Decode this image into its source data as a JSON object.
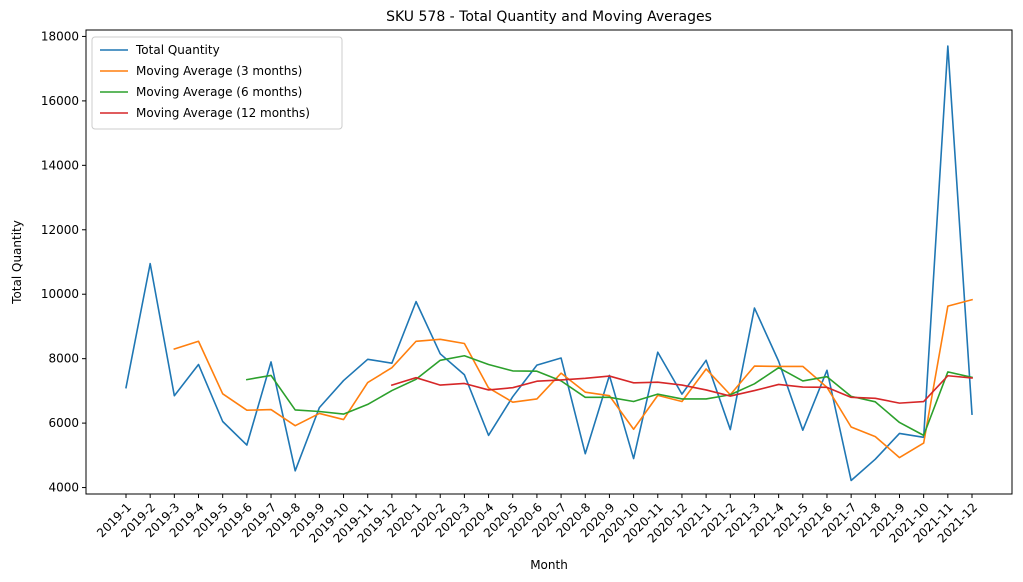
{
  "chart_data": {
    "type": "line",
    "title": "SKU 578 - Total Quantity and Moving Averages",
    "xlabel": "Month",
    "ylabel": "Total Quantity",
    "ylim": [
      3800,
      18200
    ],
    "yticks": [
      4000,
      6000,
      8000,
      10000,
      12000,
      14000,
      16000,
      18000
    ],
    "grid": false,
    "legend_position": "top-left",
    "categories": [
      "2019-1",
      "2019-2",
      "2019-3",
      "2019-4",
      "2019-5",
      "2019-6",
      "2019-7",
      "2019-8",
      "2019-9",
      "2019-10",
      "2019-11",
      "2019-12",
      "2020-1",
      "2020-2",
      "2020-3",
      "2020-4",
      "2020-5",
      "2020-6",
      "2020-7",
      "2020-8",
      "2020-9",
      "2020-10",
      "2020-11",
      "2020-12",
      "2021-1",
      "2021-2",
      "2021-3",
      "2021-4",
      "2021-5",
      "2021-6",
      "2021-7",
      "2021-8",
      "2021-9",
      "2021-10",
      "2021-11",
      "2021-12"
    ],
    "series": [
      {
        "name": "Total Quantity",
        "color": "#1f77b4",
        "values": [
          7100,
          10950,
          6850,
          7820,
          6050,
          5320,
          7900,
          4520,
          6480,
          7320,
          7980,
          7860,
          9770,
          8150,
          7500,
          5620,
          6820,
          7800,
          8020,
          5050,
          7480,
          4900,
          8200,
          6900,
          7950,
          5800,
          9570,
          7920,
          5780,
          7640,
          4220,
          4880,
          5680,
          5560,
          17700,
          6280
        ]
      },
      {
        "name": "Moving Average (3 months)",
        "color": "#ff7f0e",
        "values": [
          null,
          null,
          8300,
          8540,
          6910,
          6400,
          6420,
          5920,
          6300,
          6110,
          7260,
          7720,
          8540,
          8600,
          8470,
          7090,
          6650,
          6750,
          7550,
          6960,
          6850,
          5810,
          6860,
          6670,
          7680,
          6880,
          7770,
          7760,
          7760,
          7110,
          5880,
          5580,
          4930,
          5380,
          9630,
          9830
        ]
      },
      {
        "name": "Moving Average (6 months)",
        "color": "#2ca02c",
        "values": [
          null,
          null,
          null,
          null,
          null,
          7350,
          7480,
          6410,
          6360,
          6280,
          6580,
          7010,
          7360,
          7950,
          8090,
          7820,
          7620,
          7610,
          7310,
          6800,
          6800,
          6670,
          6900,
          6750,
          6750,
          6880,
          7220,
          7720,
          7310,
          7440,
          6830,
          6660,
          6020,
          5620,
          7590,
          7420
        ]
      },
      {
        "name": "Moving Average (12 months)",
        "color": "#d62728",
        "values": [
          null,
          null,
          null,
          null,
          null,
          null,
          null,
          null,
          null,
          null,
          null,
          7180,
          7410,
          7180,
          7230,
          7030,
          7100,
          7300,
          7340,
          7390,
          7460,
          7250,
          7270,
          7180,
          7030,
          6840,
          7010,
          7200,
          7120,
          7110,
          6800,
          6770,
          6620,
          6670,
          7470,
          7400
        ]
      }
    ]
  }
}
